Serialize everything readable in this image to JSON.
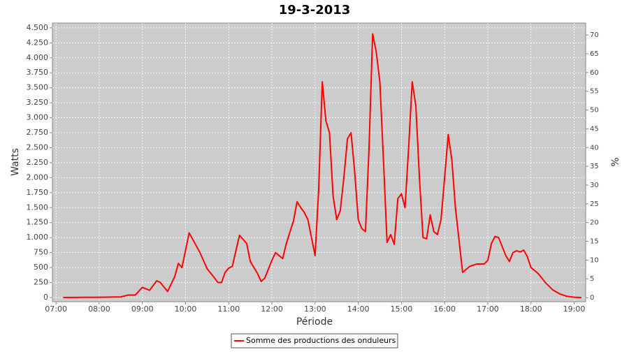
{
  "chart_data": {
    "type": "line",
    "title": "19-3-2013",
    "x_label": "Période",
    "y_label": "Watts",
    "y2_label": "%",
    "x": [
      "07:10",
      "08:00",
      "08:30",
      "08:40",
      "08:50",
      "09:00",
      "09:10",
      "09:20",
      "09:25",
      "09:35",
      "09:45",
      "09:50",
      "09:55",
      "10:05",
      "10:20",
      "10:30",
      "10:40",
      "10:45",
      "10:50",
      "10:55",
      "11:00",
      "11:05",
      "11:15",
      "11:25",
      "11:30",
      "11:40",
      "11:45",
      "11:50",
      "12:00",
      "12:05",
      "12:10",
      "12:15",
      "12:20",
      "12:30",
      "12:35",
      "12:40",
      "12:45",
      "12:50",
      "12:55",
      "13:00",
      "13:05",
      "13:10",
      "13:15",
      "13:20",
      "13:25",
      "13:30",
      "13:35",
      "13:40",
      "13:45",
      "13:50",
      "13:55",
      "14:00",
      "14:05",
      "14:10",
      "14:15",
      "14:20",
      "14:25",
      "14:30",
      "14:35",
      "14:40",
      "14:45",
      "14:50",
      "14:55",
      "15:00",
      "15:05",
      "15:10",
      "15:15",
      "15:20",
      "15:25",
      "15:30",
      "15:35",
      "15:40",
      "15:45",
      "15:50",
      "15:55",
      "16:00",
      "16:05",
      "16:10",
      "16:15",
      "16:25",
      "16:35",
      "16:45",
      "16:55",
      "17:00",
      "17:05",
      "17:10",
      "17:15",
      "17:20",
      "17:25",
      "17:30",
      "17:35",
      "17:40",
      "17:45",
      "17:50",
      "17:55",
      "18:00",
      "18:10",
      "18:20",
      "18:30",
      "18:40",
      "18:50",
      "19:00",
      "19:10"
    ],
    "series": [
      {
        "name": "Somme des productions des onduleurs",
        "color": "#ff0000",
        "values": [
          0,
          5,
          10,
          40,
          40,
          170,
          120,
          280,
          250,
          100,
          350,
          570,
          500,
          1080,
          750,
          480,
          330,
          250,
          250,
          420,
          490,
          520,
          1040,
          900,
          600,
          400,
          270,
          320,
          620,
          750,
          700,
          650,
          900,
          1280,
          1600,
          1500,
          1420,
          1300,
          1000,
          700,
          1800,
          3600,
          2950,
          2750,
          1700,
          1300,
          1450,
          2000,
          2650,
          2750,
          2100,
          1300,
          1150,
          1100,
          2500,
          4400,
          4100,
          3600,
          2300,
          920,
          1050,
          890,
          1650,
          1730,
          1500,
          2500,
          3600,
          3200,
          2000,
          1000,
          980,
          1380,
          1100,
          1050,
          1300,
          2000,
          2720,
          2300,
          1500,
          420,
          520,
          560,
          560,
          620,
          900,
          1020,
          1000,
          850,
          700,
          600,
          750,
          780,
          760,
          790,
          680,
          500,
          400,
          250,
          130,
          60,
          20,
          5,
          0
        ]
      }
    ],
    "xlim": [
      "06:55",
      "19:16"
    ],
    "xticks": [
      "07:00",
      "08:00",
      "09:00",
      "10:00",
      "11:00",
      "12:00",
      "13:00",
      "14:00",
      "15:00",
      "16:00",
      "17:00",
      "18:00",
      "19:00"
    ],
    "ylim": [
      -70,
      4580
    ],
    "yticks": [
      0,
      {
        "value": 250,
        "label": "250"
      },
      500,
      750,
      {
        "value": 1000,
        "label": "1.000"
      },
      {
        "value": 1250,
        "label": "1.250"
      },
      {
        "value": 1500,
        "label": "1.500"
      },
      {
        "value": 1750,
        "label": "1.750"
      },
      {
        "value": 2000,
        "label": "2.000"
      },
      {
        "value": 2250,
        "label": "2.250"
      },
      {
        "value": 2500,
        "label": "2.500"
      },
      {
        "value": 2750,
        "label": "2.750"
      },
      {
        "value": 3000,
        "label": "3.000"
      },
      {
        "value": 3250,
        "label": "3.250"
      },
      {
        "value": 3500,
        "label": "3.500"
      },
      {
        "value": 3750,
        "label": "3.750"
      },
      {
        "value": 4000,
        "label": "4.000"
      },
      {
        "value": 4250,
        "label": "4.250"
      },
      {
        "value": 4500,
        "label": "4.500"
      }
    ],
    "y2lim": [
      -1.1,
      73.2
    ],
    "y2ticks": [
      0,
      5,
      10,
      15,
      20,
      25,
      30,
      35,
      40,
      45,
      50,
      55,
      60,
      65,
      70
    ],
    "grid": true,
    "legend": "bottom",
    "plot_background": "#cccccc"
  }
}
